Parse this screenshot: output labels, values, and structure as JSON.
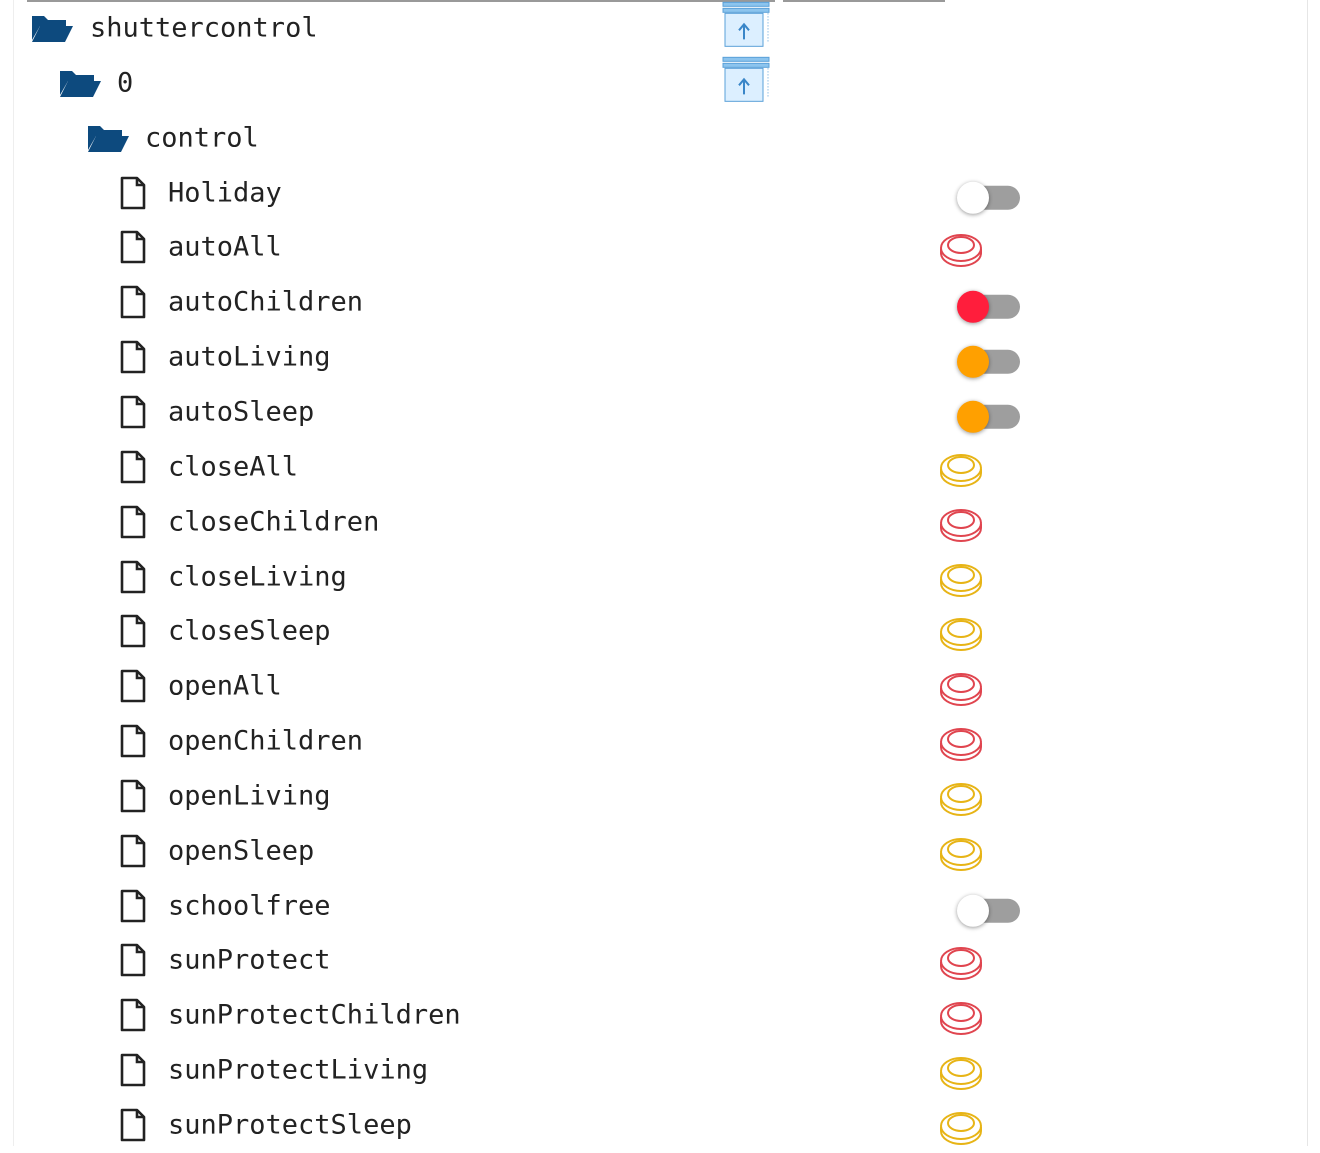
{
  "colors": {
    "folder": "#0d4a7e",
    "red": "#e0454f",
    "yellow": "#e7b416",
    "toggle_off": "#ffffff",
    "toggle_red": "#ff1e3c",
    "toggle_orange": "#ffa000",
    "track": "#9e9e9e"
  },
  "tree": [
    {
      "label": "shuttercontrol",
      "type": "folder",
      "level": 0,
      "control": "shutter"
    },
    {
      "label": "0",
      "type": "folder",
      "level": 1,
      "control": "shutter"
    },
    {
      "label": "control",
      "type": "folder",
      "level": 2,
      "control": "none"
    },
    {
      "label": "Holiday",
      "type": "file",
      "control": "toggle",
      "state": "off"
    },
    {
      "label": "autoAll",
      "type": "file",
      "control": "button",
      "color": "red"
    },
    {
      "label": "autoChildren",
      "type": "file",
      "control": "toggle",
      "state": "red"
    },
    {
      "label": "autoLiving",
      "type": "file",
      "control": "toggle",
      "state": "orange"
    },
    {
      "label": "autoSleep",
      "type": "file",
      "control": "toggle",
      "state": "orange"
    },
    {
      "label": "closeAll",
      "type": "file",
      "control": "button",
      "color": "yellow"
    },
    {
      "label": "closeChildren",
      "type": "file",
      "control": "button",
      "color": "red"
    },
    {
      "label": "closeLiving",
      "type": "file",
      "control": "button",
      "color": "yellow"
    },
    {
      "label": "closeSleep",
      "type": "file",
      "control": "button",
      "color": "yellow"
    },
    {
      "label": "openAll",
      "type": "file",
      "control": "button",
      "color": "red"
    },
    {
      "label": "openChildren",
      "type": "file",
      "control": "button",
      "color": "red"
    },
    {
      "label": "openLiving",
      "type": "file",
      "control": "button",
      "color": "yellow"
    },
    {
      "label": "openSleep",
      "type": "file",
      "control": "button",
      "color": "yellow"
    },
    {
      "label": "schoolfree",
      "type": "file",
      "control": "toggle",
      "state": "off"
    },
    {
      "label": "sunProtect",
      "type": "file",
      "control": "button",
      "color": "red"
    },
    {
      "label": "sunProtectChildren",
      "type": "file",
      "control": "button",
      "color": "red"
    },
    {
      "label": "sunProtectLiving",
      "type": "file",
      "control": "button",
      "color": "yellow"
    },
    {
      "label": "sunProtectSleep",
      "type": "file",
      "control": "button",
      "color": "yellow"
    }
  ]
}
